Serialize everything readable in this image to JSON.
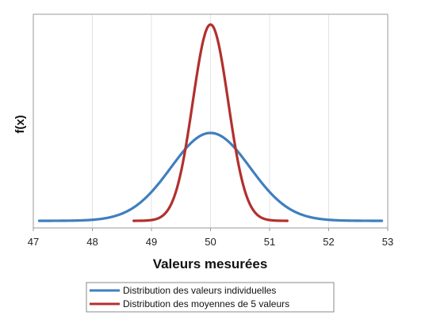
{
  "chart_data": {
    "type": "line",
    "title": "",
    "xlabel": "Valeurs mesurées",
    "ylabel": "f(x)",
    "xlim": [
      47,
      53
    ],
    "x_ticks": [
      "47",
      "48",
      "49",
      "50",
      "51",
      "52",
      "53"
    ],
    "grid": "vertical",
    "legend_position": "bottom",
    "series": [
      {
        "name": "Distribution des valeurs individuelles",
        "color": "#3f7fbf",
        "mean": 50,
        "sd": 0.67,
        "x_range": [
          47.1,
          52.9
        ]
      },
      {
        "name": "Distribution des moyennes de 5 valeurs",
        "color": "#b2302d",
        "mean": 50,
        "sd": 0.3,
        "x_range": [
          48.7,
          51.3
        ]
      }
    ]
  }
}
